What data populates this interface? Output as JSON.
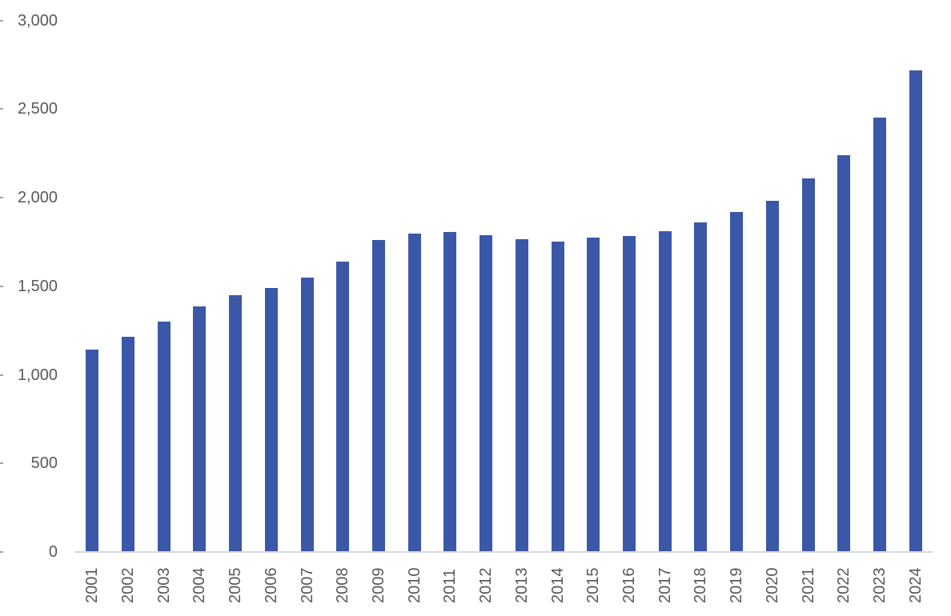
{
  "chart_data": {
    "type": "bar",
    "categories": [
      "2001",
      "2002",
      "2003",
      "2004",
      "2005",
      "2006",
      "2007",
      "2008",
      "2009",
      "2010",
      "2011",
      "2012",
      "2013",
      "2014",
      "2015",
      "2016",
      "2017",
      "2018",
      "2019",
      "2020",
      "2021",
      "2022",
      "2023",
      "2024"
    ],
    "values": [
      1140,
      1215,
      1300,
      1385,
      1450,
      1490,
      1550,
      1640,
      1760,
      1795,
      1805,
      1790,
      1765,
      1750,
      1775,
      1785,
      1810,
      1860,
      1920,
      1980,
      2110,
      2240,
      2450,
      2720
    ],
    "title": "",
    "xlabel": "",
    "ylabel": "",
    "ylim": [
      0,
      3000
    ],
    "yticks": [
      0,
      500,
      1000,
      1500,
      2000,
      2500,
      3000
    ],
    "ytick_labels": [
      "0",
      "500",
      "1,000",
      "1,500",
      "2,000",
      "2,500",
      "3,000"
    ],
    "grid": false,
    "legend": false,
    "bar_color": "#3A58A7",
    "axis_line_color": "#D9D9D9",
    "tick_label_color": "#595959"
  }
}
